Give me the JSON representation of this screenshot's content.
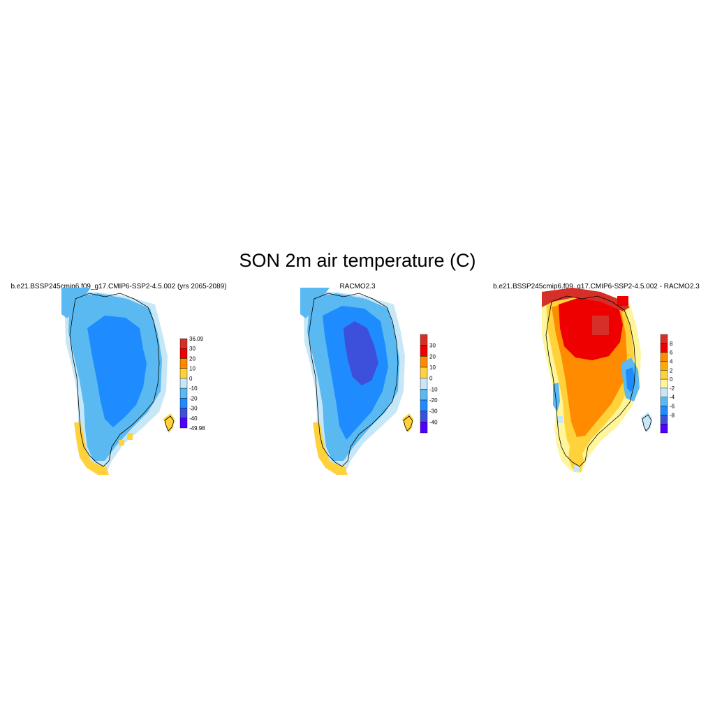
{
  "figure": {
    "title": "SON 2m air temperature (C)"
  },
  "panels": [
    {
      "id": "model",
      "title": "b.e21.BSSP245cmip6.f09_g17.CMIP6-SSP2-4.5.002 (yrs 2065-2089)",
      "colorbar": {
        "labels": [
          "36.09",
          "30",
          "20",
          "10",
          "0",
          "-10",
          "-20",
          "-30",
          "-40",
          "-49.98"
        ],
        "colors": [
          "#d62f27",
          "#ee0000",
          "#ff8c00",
          "#ffd23c",
          "#c6e7f7",
          "#59b9f0",
          "#1e8cff",
          "#3c50dc",
          "#5000ff"
        ]
      }
    },
    {
      "id": "racmo",
      "title": "RACMO2.3",
      "colorbar": {
        "labels": [
          "30",
          "20",
          "10",
          "0",
          "-10",
          "-20",
          "-30",
          "-40"
        ],
        "colors": [
          "#d62f27",
          "#ee0000",
          "#ff8c00",
          "#ffd23c",
          "#c6e7f7",
          "#59b9f0",
          "#1e8cff",
          "#3c50dc",
          "#5000ff"
        ]
      }
    },
    {
      "id": "difference",
      "title": "b.e21.BSSP245cmip6.f09_g17.CMIP6-SSP2-4.5.002 - RACMO2.3",
      "colorbar": {
        "labels": [
          "8",
          "6",
          "4",
          "2",
          "0",
          "-2",
          "-4",
          "-6",
          "-8"
        ],
        "colors": [
          "#d62f27",
          "#ee0000",
          "#ff8c00",
          "#ffaa00",
          "#ffd23c",
          "#fff59a",
          "#c6e7f7",
          "#59b9f0",
          "#1e8cff",
          "#3c50dc",
          "#5000ff"
        ]
      }
    }
  ]
}
